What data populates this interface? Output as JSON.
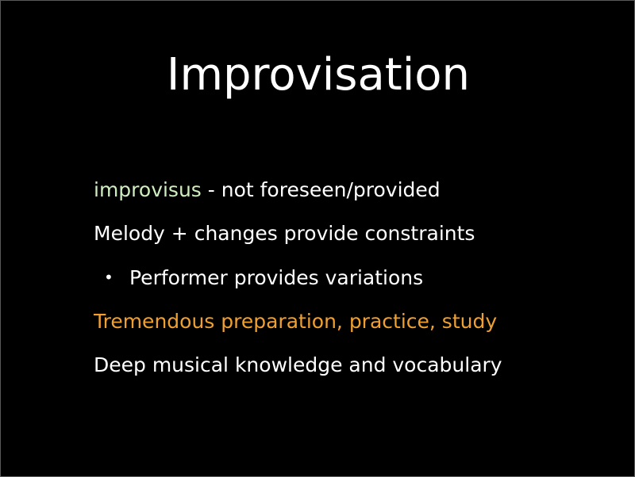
{
  "slide": {
    "title": "Improvisation",
    "line1": {
      "term": "improvisus",
      "rest": " - not foreseen/provided"
    },
    "line2": "Melody + changes provide constraints",
    "bullet": {
      "marker": "•",
      "text": "Performer provides variations"
    },
    "line4": "Tremendous preparation, practice, study",
    "line5": "Deep musical knowledge and vocabulary"
  },
  "colors": {
    "background": "#000000",
    "text": "#ffffff",
    "term_highlight": "#cfeec0",
    "emphasis": "#f0a030"
  }
}
